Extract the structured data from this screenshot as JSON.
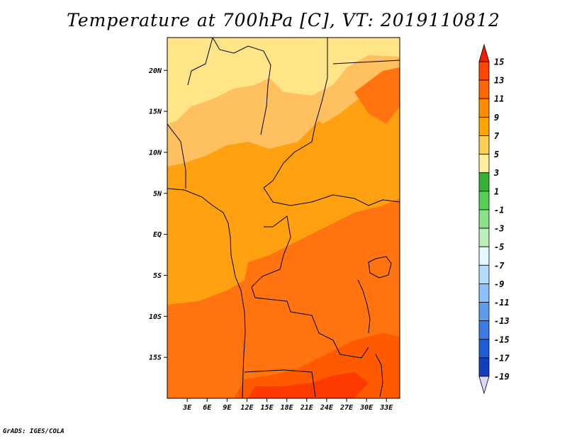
{
  "title": "Temperature at 700hPa [C], VT: 2019110812",
  "footer": "GrADS: IGES/COLA",
  "map": {
    "lon_range": [
      0,
      35
    ],
    "lat_range": [
      -20,
      24
    ],
    "lat_ticks": [
      {
        "value": 20,
        "label": "20N"
      },
      {
        "value": 15,
        "label": "15N"
      },
      {
        "value": 10,
        "label": "10N"
      },
      {
        "value": 5,
        "label": "5N"
      },
      {
        "value": 0,
        "label": "EQ"
      },
      {
        "value": -5,
        "label": "5S"
      },
      {
        "value": -10,
        "label": "10S"
      },
      {
        "value": -15,
        "label": "15S"
      }
    ],
    "lon_ticks": [
      {
        "value": 3,
        "label": "3E"
      },
      {
        "value": 6,
        "label": "6E"
      },
      {
        "value": 9,
        "label": "9E"
      },
      {
        "value": 12,
        "label": "12E"
      },
      {
        "value": 15,
        "label": "15E"
      },
      {
        "value": 18,
        "label": "18E"
      },
      {
        "value": 21,
        "label": "21E"
      },
      {
        "value": 24,
        "label": "24E"
      },
      {
        "value": 27,
        "label": "27E"
      },
      {
        "value": 30,
        "label": "30E"
      },
      {
        "value": 33,
        "label": "33E"
      }
    ]
  },
  "colorbar": {
    "levels": [
      "15",
      "13",
      "11",
      "9",
      "7",
      "5",
      "3",
      "1",
      "-1",
      "-3",
      "-5",
      "-7",
      "-9",
      "-11",
      "-13",
      "-15",
      "-17",
      "-19"
    ],
    "colors": [
      "#ff2a00",
      "#ff4500",
      "#ff6600",
      "#ff8c00",
      "#ffa500",
      "#ffcc55",
      "#ffee99",
      "#33b133",
      "#55d055",
      "#88e288",
      "#bbf0bb",
      "#e4f8ff",
      "#b4dcff",
      "#8cc0ff",
      "#5e9cf0",
      "#3a7be6",
      "#1e5dd8",
      "#0f40c0",
      "#0a2a8a"
    ],
    "top_arrow_color": "#ee2200",
    "bottom_arrow_color": "#d8d8f8"
  },
  "field": {
    "region_colors": {
      "north_cool": "#ffe488",
      "sahel": "#ffc060",
      "base": "#ffa010",
      "warm": "#ff7410",
      "hot": "#ff5a00",
      "hottest": "#ff3a00"
    }
  }
}
